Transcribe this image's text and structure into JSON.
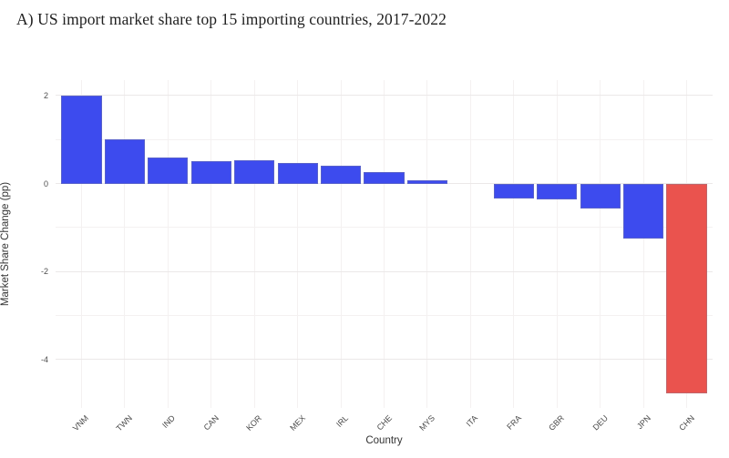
{
  "title": "A) US import market share top 15 importing countries, 2017-2022",
  "chart_data": {
    "type": "bar",
    "title": "A) US import market share top 15 importing countries, 2017-2022",
    "xlabel": "Country",
    "ylabel": "Market Share Change (pp)",
    "categories": [
      "VNM",
      "TWN",
      "IND",
      "CAN",
      "KOR",
      "MEX",
      "IRL",
      "CHE",
      "MYS",
      "ITA",
      "FRA",
      "GBR",
      "DEU",
      "JPN",
      "CHN"
    ],
    "values": [
      2.0,
      1.0,
      0.6,
      0.5,
      0.52,
      0.46,
      0.4,
      0.25,
      0.08,
      0.0,
      -0.35,
      -0.36,
      -0.57,
      -1.25,
      -4.77
    ],
    "ylim": [
      -5.1,
      2.35
    ],
    "yticks": [
      2,
      0,
      -2,
      -4
    ],
    "yticks_minor": [
      1,
      -1,
      -3
    ],
    "grid": true,
    "legend": "none",
    "default_bar_color": "#3D4BEE",
    "highlight_category": "CHN",
    "highlight_color": "#EA534E",
    "background_color": "#ffffff"
  }
}
